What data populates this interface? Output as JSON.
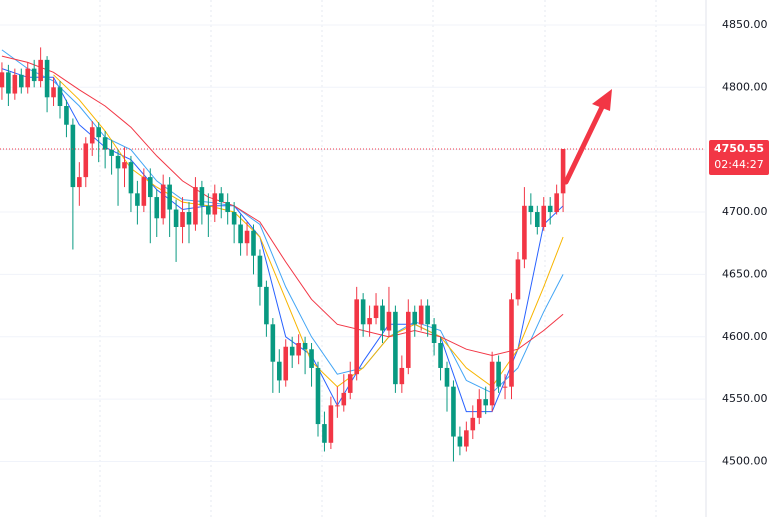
{
  "chart_data": {
    "type": "candlestick",
    "up_color": "#f23645",
    "down_color": "#089981",
    "xlim": [
      -0.3,
      109
    ],
    "ylim": [
      4455.5,
      4870
    ],
    "yticks": [
      {
        "value": 4500,
        "label": "4500.00"
      },
      {
        "value": 4550,
        "label": "4550.00"
      },
      {
        "value": 4600,
        "label": "4600.00"
      },
      {
        "value": 4650,
        "label": "4650.00"
      },
      {
        "value": 4700,
        "label": "4700.00"
      },
      {
        "value": 4750,
        "label": "4750.00"
      },
      {
        "value": 4800,
        "label": "4800.00"
      },
      {
        "value": 4850,
        "label": "4850.00"
      }
    ],
    "grid": true,
    "open": [
      4800,
      4812,
      4795,
      4810,
      4800,
      4815,
      4805,
      4822,
      4792,
      4800,
      4785,
      4770,
      4720,
      4728,
      4755,
      4768,
      4760,
      4750,
      4745,
      4735,
      4740,
      4715,
      4705,
      4728,
      4712,
      4695,
      4722,
      4702,
      4688,
      4700,
      4690,
      4720,
      4705,
      4698,
      4715,
      4708,
      4700,
      4690,
      4675,
      4685,
      4665,
      4640,
      4610,
      4580,
      4565,
      4592,
      4585,
      4595,
      4590,
      4575,
      4530,
      4515,
      4545,
      4545,
      4555,
      4570,
      4630,
      4610,
      4615,
      4625,
      4605,
      4620,
      4562,
      4575,
      4620,
      4610,
      4625,
      4610,
      4595,
      4575,
      4560,
      4520,
      4512,
      4525,
      4535,
      4550,
      4545,
      4580,
      4560,
      4560,
      4630,
      4662,
      4705,
      4700,
      4688,
      4705,
      4700,
      4715
    ],
    "high": [
      4820,
      4818,
      4815,
      4815,
      4820,
      4822,
      4832,
      4825,
      4808,
      4805,
      4790,
      4775,
      4740,
      4760,
      4773,
      4772,
      4765,
      4758,
      4750,
      4752,
      4745,
      4725,
      4735,
      4735,
      4718,
      4730,
      4728,
      4710,
      4712,
      4708,
      4728,
      4725,
      4715,
      4722,
      4720,
      4715,
      4708,
      4698,
      4692,
      4690,
      4670,
      4645,
      4615,
      4590,
      4598,
      4600,
      4602,
      4600,
      4595,
      4580,
      4540,
      4552,
      4560,
      4570,
      4580,
      4640,
      4635,
      4625,
      4635,
      4630,
      4640,
      4625,
      4585,
      4630,
      4625,
      4630,
      4630,
      4615,
      4600,
      4580,
      4565,
      4528,
      4532,
      4545,
      4558,
      4560,
      4588,
      4585,
      4570,
      4635,
      4668,
      4720,
      4715,
      4705,
      4712,
      4712,
      4722,
      4750.55
    ],
    "low": [
      4790,
      4785,
      4790,
      4795,
      4795,
      4800,
      4800,
      4780,
      4785,
      4775,
      4760,
      4670,
      4705,
      4720,
      4745,
      4740,
      4735,
      4730,
      4705,
      4720,
      4700,
      4690,
      4700,
      4675,
      4680,
      4690,
      4680,
      4660,
      4675,
      4675,
      4685,
      4690,
      4680,
      4692,
      4695,
      4690,
      4675,
      4665,
      4665,
      4650,
      4625,
      4600,
      4555,
      4555,
      4560,
      4575,
      4578,
      4570,
      4560,
      4520,
      4508,
      4510,
      4535,
      4540,
      4550,
      4565,
      4600,
      4600,
      4610,
      4595,
      4600,
      4555,
      4555,
      4570,
      4600,
      4605,
      4600,
      4585,
      4565,
      4540,
      4500,
      4505,
      4508,
      4518,
      4530,
      4538,
      4540,
      4555,
      4550,
      4550,
      4625,
      4655,
      4690,
      4682,
      4685,
      4690,
      4698,
      4700
    ],
    "close": [
      4812,
      4795,
      4810,
      4800,
      4815,
      4805,
      4822,
      4792,
      4800,
      4785,
      4770,
      4720,
      4728,
      4755,
      4768,
      4760,
      4750,
      4745,
      4735,
      4740,
      4715,
      4705,
      4728,
      4712,
      4695,
      4722,
      4702,
      4688,
      4700,
      4690,
      4720,
      4705,
      4698,
      4715,
      4708,
      4700,
      4690,
      4675,
      4685,
      4665,
      4640,
      4610,
      4580,
      4565,
      4592,
      4585,
      4595,
      4590,
      4575,
      4530,
      4515,
      4545,
      4545,
      4555,
      4570,
      4630,
      4610,
      4615,
      4625,
      4605,
      4620,
      4562,
      4575,
      4620,
      4610,
      4625,
      4610,
      4595,
      4575,
      4560,
      4520,
      4512,
      4525,
      4535,
      4550,
      4545,
      4580,
      4560,
      4560,
      4630,
      4662,
      4705,
      4700,
      4688,
      4705,
      4700,
      4715,
      4750.55
    ],
    "lines": [
      {
        "color": "#2962ff",
        "x": [
          0,
          4,
          8,
          12,
          16,
          20,
          24,
          28,
          32,
          36,
          40,
          44,
          48,
          52,
          56,
          60,
          64,
          68,
          72,
          76,
          80,
          84,
          87
        ],
        "values": [
          4815,
          4808,
          4808,
          4770,
          4752,
          4742,
          4718,
          4702,
          4705,
          4705,
          4680,
          4600,
          4585,
          4545,
          4580,
          4610,
          4610,
          4600,
          4540,
          4540,
          4590,
          4690,
          4705
        ]
      },
      {
        "color": "#42a5f5",
        "x": [
          0,
          4,
          8,
          12,
          16,
          20,
          24,
          28,
          32,
          36,
          40,
          44,
          48,
          52,
          56,
          60,
          64,
          68,
          72,
          76,
          80,
          84,
          87
        ],
        "values": [
          4830,
          4815,
          4805,
          4785,
          4760,
          4750,
          4725,
          4710,
          4708,
          4705,
          4690,
          4640,
          4600,
          4570,
          4575,
          4600,
          4612,
          4605,
          4565,
          4555,
          4575,
          4620,
          4650
        ]
      },
      {
        "color": "#f7b500",
        "x": [
          8,
          12,
          16,
          20,
          24,
          28,
          32,
          36,
          40,
          44,
          48,
          52,
          56,
          60,
          64,
          68,
          72,
          76,
          80,
          84,
          87
        ],
        "values": [
          4810,
          4790,
          4765,
          4735,
          4720,
          4708,
          4705,
          4700,
          4680,
          4630,
          4580,
          4560,
          4575,
          4600,
          4610,
          4600,
          4575,
          4560,
          4590,
          4640,
          4680
        ]
      },
      {
        "color": "#f23645",
        "x": [
          0,
          4,
          8,
          12,
          16,
          20,
          24,
          28,
          32,
          36,
          40,
          44,
          48,
          52,
          56,
          60,
          64,
          68,
          72,
          76,
          80,
          84,
          87
        ],
        "values": [
          4825,
          4820,
          4812,
          4798,
          4785,
          4768,
          4745,
          4725,
          4712,
          4705,
          4692,
          4660,
          4630,
          4610,
          4605,
          4600,
          4605,
          4600,
          4590,
          4585,
          4590,
          4605,
          4618
        ]
      }
    ],
    "countdown": "02:44:27"
  }
}
